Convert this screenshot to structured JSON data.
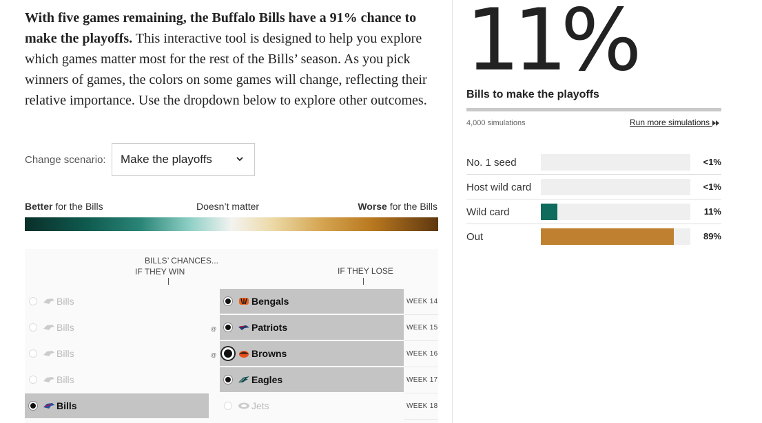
{
  "intro": {
    "bold": "With five games remaining, the Buffalo Bills have a 91% chance to make the playoffs.",
    "rest": " This interactive tool is designed to help you explore which games matter most for the rest of the Bills’ season. As you pick winners of games, the colors on some games will change, reflecting their relative importance. Use the dropdown below to explore other outcomes."
  },
  "scenario": {
    "label": "Change scenario:",
    "selected": "Make the playoffs"
  },
  "legend": {
    "better_bold": "Better",
    "better_rest": " for the Bills",
    "middle": "Doesn’t matter",
    "worse_bold": "Worse",
    "worse_rest": " for the Bills"
  },
  "columns": {
    "win_line1": "BILLS’ CHANCES...",
    "win_line2": "IF THEY WIN",
    "lose": "IF THEY LOSE"
  },
  "games": [
    {
      "left": "Bills",
      "right": "Bengals",
      "week": "WEEK 14",
      "at": "",
      "selected": "right"
    },
    {
      "left": "Bills",
      "right": "Patriots",
      "week": "WEEK 15",
      "at": "@",
      "selected": "right"
    },
    {
      "left": "Bills",
      "right": "Browns",
      "week": "WEEK 16",
      "at": "@",
      "selected": "right"
    },
    {
      "left": "Bills",
      "right": "Eagles",
      "week": "WEEK 17",
      "at": "",
      "selected": "right"
    },
    {
      "left": "Bills",
      "right": "Jets",
      "week": "WEEK 18",
      "at": "",
      "selected": "left"
    }
  ],
  "summary": {
    "big": "11%",
    "sub": "Bills to make the playoffs",
    "sims": "4,000 simulations",
    "more": "Run more simulations",
    "progress": 1.0
  },
  "outcomes": [
    {
      "label": "No. 1 seed",
      "pct": "<1%",
      "value": 0,
      "color": "#efefef"
    },
    {
      "label": "Host wild card",
      "pct": "<1%",
      "value": 0,
      "color": "#efefef"
    },
    {
      "label": "Wild card",
      "pct": "11%",
      "value": 0.11,
      "color": "#0f6b5c"
    },
    {
      "label": "Out",
      "pct": "89%",
      "value": 0.89,
      "color": "#bf8030"
    }
  ]
}
